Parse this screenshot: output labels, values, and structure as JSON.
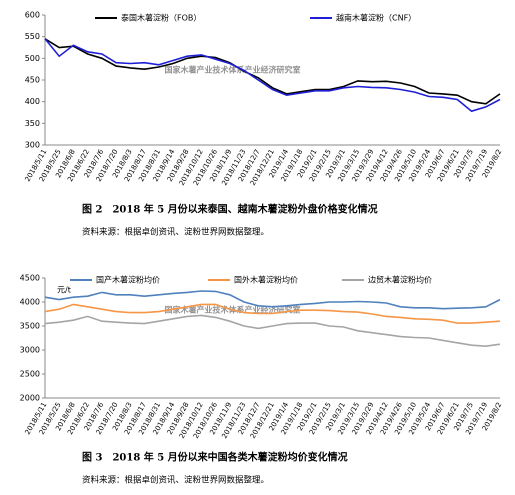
{
  "chart_data": [
    {
      "type": "line",
      "annotation": "国家木薯产业技术体系产业经济研究室",
      "caption": "图 2　2018 年 5 月份以来泰国、越南木薯淀粉外盘价格变化情况",
      "source": "资料来源：根据卓创资讯、淀粉世界网数据整理。",
      "categories": [
        "2018/5/11",
        "2018/5/25",
        "2018/6/8",
        "2018/6/22",
        "2018/7/6",
        "2018/7/20",
        "2018/8/3",
        "2018/8/17",
        "2018/8/31",
        "2018/9/14",
        "2018/9/28",
        "2018/10/12",
        "2018/10/26",
        "2018/11/9",
        "2018/11/23",
        "2018/12/7",
        "2018/12/21",
        "2019/1/4",
        "2019/1/18",
        "2019/2/1",
        "2019/2/15",
        "2019/3/1",
        "2019/3/15",
        "2019/3/29",
        "2019/4/12",
        "2019/4/26",
        "2019/5/10",
        "2019/5/24",
        "2019/6/7",
        "2019/6/21",
        "2019/7/5",
        "2019/7/19",
        "2019/8/2"
      ],
      "series": [
        {
          "name": "泰国木薯淀粉（FOB）",
          "color": "#000000",
          "values": [
            545,
            525,
            528,
            510,
            500,
            482,
            478,
            475,
            480,
            488,
            500,
            505,
            502,
            490,
            470,
            455,
            432,
            418,
            423,
            428,
            428,
            435,
            448,
            446,
            447,
            443,
            435,
            420,
            418,
            415,
            400,
            395,
            418
          ]
        },
        {
          "name": "越南木薯淀粉（CNF）",
          "color": "#1f1fd6",
          "values": [
            545,
            505,
            530,
            515,
            510,
            490,
            488,
            490,
            485,
            495,
            505,
            508,
            498,
            488,
            472,
            450,
            428,
            415,
            420,
            425,
            425,
            432,
            435,
            433,
            432,
            428,
            422,
            412,
            410,
            405,
            378,
            388,
            405
          ]
        }
      ],
      "ylim": [
        300,
        600
      ],
      "yticks": [
        300,
        350,
        400,
        450,
        500,
        550,
        600
      ]
    },
    {
      "type": "line",
      "annotation": "国家木薯产业技术体系产业经济研究室",
      "y_label": "元/t",
      "caption": "图 3　2018 年 5 月份以来中国各类木薯淀粉均价变化情况",
      "source": "资料来源：根据卓创资讯、淀粉世界网数据整理。",
      "categories": [
        "2018/5/11",
        "2018/5/25",
        "2018/6/8",
        "2018/6/22",
        "2018/7/6",
        "2018/7/20",
        "2018/8/3",
        "2018/8/17",
        "2018/8/31",
        "2018/9/14",
        "2018/9/28",
        "2018/10/12",
        "2018/10/26",
        "2018/11/9",
        "2018/11/23",
        "2018/12/7",
        "2018/12/21",
        "2019/1/4",
        "2019/1/18",
        "2019/2/1",
        "2019/2/15",
        "2019/3/1",
        "2019/3/15",
        "2019/3/29",
        "2019/4/12",
        "2019/4/26",
        "2019/5/10",
        "2019/5/24",
        "2019/6/7",
        "2019/6/21",
        "2019/7/5",
        "2019/7/19",
        "2019/8/2"
      ],
      "series": [
        {
          "name": "国产木薯淀粉均价",
          "color": "#4f81bd",
          "values": [
            4100,
            4050,
            4100,
            4120,
            4200,
            4150,
            4150,
            4120,
            4150,
            4180,
            4200,
            4230,
            4220,
            4150,
            4000,
            3920,
            3900,
            3920,
            3950,
            3970,
            4000,
            4000,
            4010,
            4000,
            3980,
            3900,
            3880,
            3880,
            3860,
            3870,
            3880,
            3900,
            4050
          ]
        },
        {
          "name": "国外木薯淀粉均价",
          "color": "#f79646",
          "values": [
            3800,
            3850,
            3950,
            3900,
            3850,
            3800,
            3780,
            3780,
            3800,
            3850,
            3900,
            3950,
            3950,
            3850,
            3780,
            3760,
            3760,
            3800,
            3830,
            3830,
            3820,
            3800,
            3790,
            3750,
            3700,
            3680,
            3650,
            3640,
            3620,
            3560,
            3560,
            3580,
            3600
          ]
        },
        {
          "name": "边贸木薯淀粉均价",
          "color": "#a5a5a5",
          "values": [
            3550,
            3580,
            3620,
            3700,
            3600,
            3580,
            3560,
            3550,
            3600,
            3650,
            3700,
            3720,
            3680,
            3600,
            3500,
            3450,
            3500,
            3550,
            3560,
            3560,
            3500,
            3480,
            3400,
            3360,
            3320,
            3280,
            3260,
            3250,
            3200,
            3150,
            3100,
            3080,
            3120
          ]
        }
      ],
      "ylim": [
        2000,
        4500
      ],
      "yticks": [
        2000,
        2500,
        3000,
        3500,
        4000,
        4500
      ]
    }
  ]
}
